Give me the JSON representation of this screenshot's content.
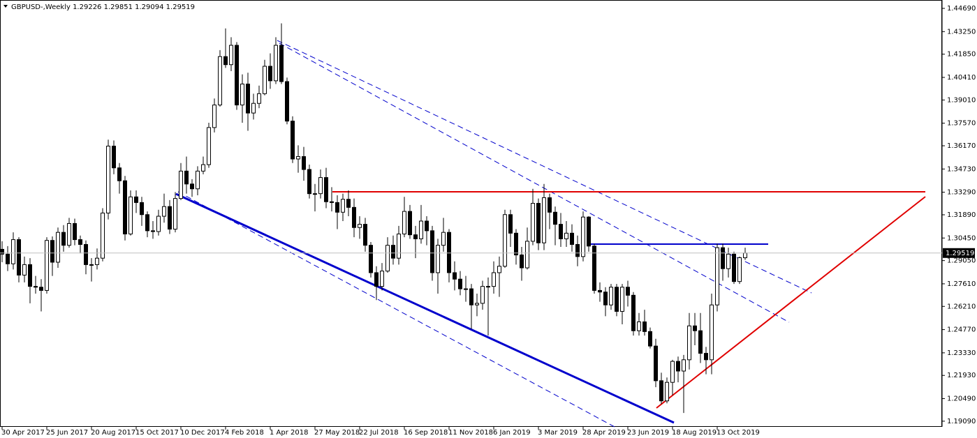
{
  "chart_data": {
    "type": "candlestick",
    "title": "GBPUSD-,Weekly  1.29226 1.29851 1.29094 1.29519",
    "categories": [
      "30 Apr 2017",
      null,
      null,
      null,
      null,
      null,
      null,
      null,
      "25 Jun 2017",
      null,
      null,
      null,
      null,
      null,
      null,
      null,
      "20 Aug 2017",
      null,
      null,
      null,
      null,
      null,
      null,
      null,
      "15 Oct 2017",
      null,
      null,
      null,
      null,
      null,
      null,
      null,
      "10 Dec 2017",
      null,
      null,
      null,
      null,
      null,
      null,
      null,
      "4 Feb 2018",
      null,
      null,
      null,
      null,
      null,
      null,
      null,
      "1 Apr 2018",
      null,
      null,
      null,
      null,
      null,
      null,
      null,
      "27 May 2018",
      null,
      null,
      null,
      null,
      null,
      null,
      null,
      "22 Jul 2018",
      null,
      null,
      null,
      null,
      null,
      null,
      null,
      "16 Sep 2018",
      null,
      null,
      null,
      null,
      null,
      null,
      null,
      "11 Nov 2018",
      null,
      null,
      null,
      null,
      null,
      null,
      null,
      "6 Jan 2019",
      null,
      null,
      null,
      null,
      null,
      null,
      null,
      "3 Mar 2019",
      null,
      null,
      null,
      null,
      null,
      null,
      null,
      "28 Apr 2019",
      null,
      null,
      null,
      null,
      null,
      null,
      null,
      "23 Jun 2019",
      null,
      null,
      null,
      null,
      null,
      null,
      null,
      "18 Aug 2019",
      null,
      null,
      null,
      null,
      null,
      null,
      null,
      "13 Oct 2019",
      null,
      null,
      null,
      null,
      null
    ],
    "open": [
      1.2975,
      1.2945,
      1.2885,
      1.3035,
      1.2815,
      1.288,
      1.2745,
      1.274,
      1.272,
      1.303,
      1.2895,
      1.308,
      1.3,
      1.3135,
      1.3035,
      1.3005,
      1.288,
      1.288,
      1.292,
      1.32,
      1.3615,
      1.348,
      1.34,
      1.307,
      1.33,
      1.3265,
      1.319,
      1.309,
      1.3085,
      1.318,
      1.324,
      1.31,
      1.329,
      1.346,
      1.338,
      1.335,
      1.346,
      1.35,
      1.373,
      1.387,
      1.417,
      1.412,
      1.424,
      1.387,
      1.4,
      1.382,
      1.388,
      1.394,
      1.411,
      1.402,
      1.424,
      1.4015,
      1.377,
      1.3535,
      1.355,
      1.347,
      1.332,
      1.332,
      1.342,
      1.327,
      1.3265,
      1.3205,
      1.3285,
      1.3235,
      1.311,
      1.313,
      1.3,
      1.283,
      1.2745,
      1.284,
      1.3,
      1.292,
      1.307,
      1.321,
      1.3065,
      1.304,
      1.315,
      1.309,
      1.283,
      1.3,
      1.308,
      1.283,
      1.279,
      1.273,
      1.273,
      1.263,
      1.264,
      1.2745,
      1.2745,
      1.283,
      1.287,
      1.319,
      1.3075,
      1.294,
      1.286,
      1.3025,
      1.326,
      1.3015,
      1.3295,
      1.3205,
      1.313,
      1.304,
      1.3075,
      1.3005,
      1.293,
      1.3175,
      1.2995,
      1.272,
      1.271,
      1.263,
      1.274,
      1.259,
      1.274,
      1.269,
      1.247,
      1.2525,
      1.2465,
      1.2375,
      1.216,
      1.2035,
      1.215,
      1.228,
      1.222,
      1.229,
      1.25,
      1.247,
      1.233,
      1.229,
      1.263,
      1.2985,
      1.2855,
      1.2945,
      1.2775,
      1.29226
    ],
    "high": [
      1.3025,
      1.2995,
      1.308,
      1.305,
      1.293,
      1.292,
      1.281,
      1.279,
      1.305,
      1.3055,
      1.311,
      1.3125,
      1.317,
      1.3165,
      1.306,
      1.303,
      1.292,
      1.298,
      1.323,
      1.3655,
      1.365,
      1.351,
      1.343,
      1.334,
      1.334,
      1.33,
      1.321,
      1.315,
      1.322,
      1.332,
      1.328,
      1.333,
      1.351,
      1.355,
      1.341,
      1.349,
      1.355,
      1.376,
      1.391,
      1.421,
      1.4345,
      1.429,
      1.426,
      1.406,
      1.407,
      1.394,
      1.399,
      1.415,
      1.419,
      1.429,
      1.4376,
      1.404,
      1.38,
      1.362,
      1.361,
      1.35,
      1.338,
      1.347,
      1.348,
      1.336,
      1.331,
      1.332,
      1.334,
      1.329,
      1.318,
      1.317,
      1.302,
      1.287,
      1.289,
      1.305,
      1.306,
      1.312,
      1.33,
      1.325,
      1.312,
      1.325,
      1.318,
      1.312,
      1.304,
      1.317,
      1.31,
      1.29,
      1.284,
      1.281,
      1.276,
      1.27,
      1.278,
      1.28,
      1.29,
      1.293,
      1.322,
      1.322,
      1.31,
      1.299,
      1.311,
      1.335,
      1.329,
      1.338,
      1.332,
      1.324,
      1.32,
      1.315,
      1.313,
      1.306,
      1.321,
      1.318,
      1.301,
      1.277,
      1.274,
      1.276,
      1.276,
      1.276,
      1.278,
      1.271,
      1.258,
      1.26,
      1.249,
      1.242,
      1.221,
      1.218,
      1.229,
      1.231,
      1.232,
      1.258,
      1.258,
      1.258,
      1.237,
      1.27,
      1.301,
      1.301,
      1.2985,
      1.296,
      1.293,
      1.29851
    ],
    "low": [
      1.2895,
      1.284,
      1.285,
      1.277,
      1.277,
      1.264,
      1.27,
      1.259,
      1.27,
      1.281,
      1.286,
      1.296,
      1.2985,
      1.3,
      1.295,
      1.282,
      1.2775,
      1.285,
      1.29,
      1.316,
      1.344,
      1.332,
      1.303,
      1.306,
      1.32,
      1.312,
      1.305,
      1.304,
      1.306,
      1.314,
      1.307,
      1.308,
      1.328,
      1.332,
      1.33,
      1.331,
      1.344,
      1.348,
      1.37,
      1.386,
      1.41,
      1.408,
      1.384,
      1.376,
      1.371,
      1.378,
      1.385,
      1.393,
      1.397,
      1.4,
      1.4,
      1.375,
      1.351,
      1.345,
      1.34,
      1.329,
      1.321,
      1.329,
      1.323,
      1.321,
      1.31,
      1.315,
      1.318,
      1.305,
      1.304,
      1.296,
      1.28,
      1.266,
      1.272,
      1.283,
      1.288,
      1.288,
      1.305,
      1.304,
      1.292,
      1.301,
      1.3,
      1.278,
      1.27,
      1.296,
      1.277,
      1.272,
      1.269,
      1.265,
      1.248,
      1.256,
      1.26,
      1.244,
      1.27,
      1.268,
      1.286,
      1.299,
      1.288,
      1.278,
      1.285,
      1.3,
      1.297,
      1.297,
      1.31,
      1.3,
      1.299,
      1.299,
      1.296,
      1.287,
      1.29,
      1.296,
      1.27,
      1.265,
      1.256,
      1.26,
      1.256,
      1.251,
      1.262,
      1.244,
      1.244,
      1.244,
      1.236,
      1.212,
      1.2015,
      1.202,
      1.207,
      1.215,
      1.196,
      1.223,
      1.238,
      1.227,
      1.22,
      1.22,
      1.259,
      1.278,
      1.28,
      1.276,
      1.276,
      1.29094
    ],
    "close": [
      1.2945,
      1.2885,
      1.3035,
      1.2815,
      1.288,
      1.2745,
      1.274,
      1.272,
      1.303,
      1.2895,
      1.308,
      1.3,
      1.3135,
      1.3035,
      1.3005,
      1.288,
      1.288,
      1.292,
      1.32,
      1.3615,
      1.348,
      1.34,
      1.307,
      1.33,
      1.3265,
      1.319,
      1.309,
      1.3085,
      1.318,
      1.324,
      1.31,
      1.329,
      1.346,
      1.338,
      1.335,
      1.346,
      1.35,
      1.373,
      1.387,
      1.417,
      1.412,
      1.424,
      1.387,
      1.4,
      1.382,
      1.388,
      1.394,
      1.411,
      1.402,
      1.424,
      1.4015,
      1.377,
      1.3535,
      1.355,
      1.347,
      1.332,
      1.332,
      1.342,
      1.327,
      1.3265,
      1.3205,
      1.3285,
      1.3235,
      1.311,
      1.313,
      1.3,
      1.283,
      1.2745,
      1.284,
      1.3,
      1.292,
      1.307,
      1.321,
      1.3065,
      1.304,
      1.315,
      1.309,
      1.283,
      1.3,
      1.308,
      1.283,
      1.279,
      1.273,
      1.273,
      1.263,
      1.264,
      1.2745,
      1.2745,
      1.283,
      1.287,
      1.319,
      1.3075,
      1.294,
      1.286,
      1.3025,
      1.326,
      1.3015,
      1.3295,
      1.3205,
      1.313,
      1.304,
      1.3075,
      1.3005,
      1.293,
      1.3175,
      1.2995,
      1.272,
      1.271,
      1.263,
      1.274,
      1.259,
      1.274,
      1.269,
      1.247,
      1.2525,
      1.2465,
      1.2375,
      1.216,
      1.2035,
      1.215,
      1.228,
      1.222,
      1.229,
      1.25,
      1.247,
      1.233,
      1.229,
      1.263,
      1.2985,
      1.2855,
      1.2945,
      1.2775,
      1.2923,
      1.29519
    ],
    "up_color": "#ffffff",
    "down_color": "#000000",
    "ylim": [
      1.1874,
      1.4521
    ],
    "yticks": [
      {
        "value": 1.4469,
        "label": "1.44690"
      },
      {
        "value": 1.4325,
        "label": "1.43250"
      },
      {
        "value": 1.4185,
        "label": "1.41850"
      },
      {
        "value": 1.4041,
        "label": "1.40410"
      },
      {
        "value": 1.3901,
        "label": "1.39010"
      },
      {
        "value": 1.3757,
        "label": "1.37570"
      },
      {
        "value": 1.3617,
        "label": "1.36170"
      },
      {
        "value": 1.3473,
        "label": "1.34730"
      },
      {
        "value": 1.3329,
        "label": "1.33290"
      },
      {
        "value": 1.3189,
        "label": "1.31890"
      },
      {
        "value": 1.3045,
        "label": "1.30450"
      },
      {
        "value": 1.2905,
        "label": "1.29050"
      },
      {
        "value": 1.2761,
        "label": "1.27610"
      },
      {
        "value": 1.2621,
        "label": "1.26210"
      },
      {
        "value": 1.2477,
        "label": "1.24770"
      },
      {
        "value": 1.2333,
        "label": "1.23330"
      },
      {
        "value": 1.2193,
        "label": "1.21930"
      },
      {
        "value": 1.2049,
        "label": "1.20490"
      },
      {
        "value": 1.1909,
        "label": "1.19090"
      }
    ],
    "grid": false
  }
}
